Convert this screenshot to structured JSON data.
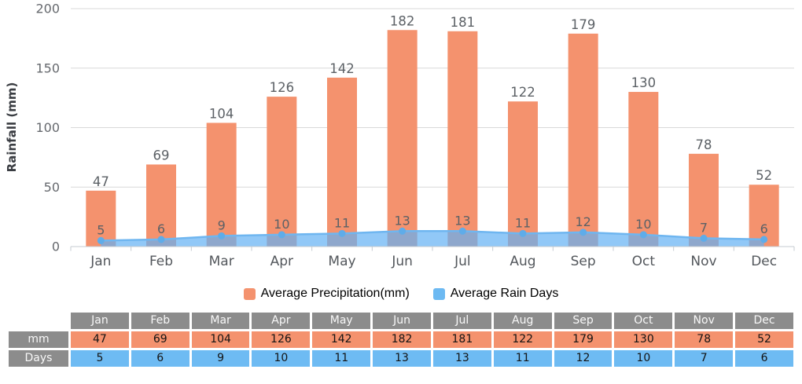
{
  "chart_data": {
    "type": "bar",
    "categories": [
      "Jan",
      "Feb",
      "Mar",
      "Apr",
      "May",
      "Jun",
      "Jul",
      "Aug",
      "Sep",
      "Oct",
      "Nov",
      "Dec"
    ],
    "series": [
      {
        "name": "Average Precipitation(mm)",
        "type": "bar",
        "values": [
          47,
          69,
          104,
          126,
          142,
          182,
          181,
          122,
          179,
          130,
          78,
          52
        ],
        "color": "#F4926E"
      },
      {
        "name": "Average Rain Days",
        "type": "area",
        "values": [
          5,
          6,
          9,
          10,
          11,
          13,
          13,
          11,
          12,
          10,
          7,
          6
        ],
        "color": "#6FB6F0",
        "fill_rgba": "rgba(99,176,243,0.70)",
        "marker_color": "#5FACE9"
      }
    ],
    "title": "",
    "xlabel": "",
    "ylabel": "Rainfall (mm)",
    "y_ticks": [
      0,
      50,
      100,
      150,
      200
    ],
    "ylim": [
      0,
      200
    ],
    "grid": true,
    "legend_position": "bottom"
  },
  "legend": {
    "items": [
      {
        "label": "Average Precipitation(mm)",
        "color": "#F4926E"
      },
      {
        "label": "Average Rain Days",
        "color": "#6CB9F2"
      }
    ]
  },
  "table": {
    "corner": "",
    "columns": [
      "Jan",
      "Feb",
      "Mar",
      "Apr",
      "May",
      "Jun",
      "Jul",
      "Aug",
      "Sep",
      "Oct",
      "Nov",
      "Dec"
    ],
    "rows": [
      {
        "label": "mm",
        "values": [
          "47",
          "69",
          "104",
          "126",
          "142",
          "182",
          "181",
          "122",
          "179",
          "130",
          "78",
          "52"
        ],
        "bg": "#F4926E"
      },
      {
        "label": "Days",
        "values": [
          "5",
          "6",
          "9",
          "10",
          "11",
          "13",
          "13",
          "11",
          "12",
          "10",
          "7",
          "6"
        ],
        "bg": "#6EBBF3"
      }
    ]
  },
  "colors": {
    "grid": "#D9D9D9",
    "axis": "#C5CBD1",
    "y_tick_label": "#66696E",
    "month_label": "#53575C",
    "value_label": "#5C6166",
    "y_title": "#3A3D42",
    "table_header_bg": "#8C8C8C"
  }
}
